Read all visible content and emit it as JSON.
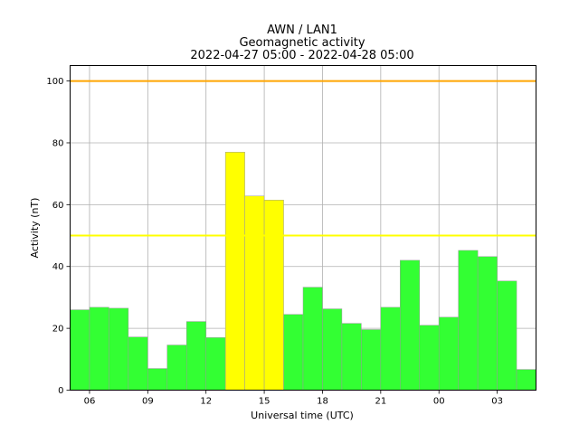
{
  "chart_data": {
    "type": "bar",
    "title": [
      "AWN / LAN1",
      "Geomagnetic activity",
      "2022-04-27 05:00 - 2022-04-28 05:00"
    ],
    "xlabel": "Universal time (UTC)",
    "ylabel": "Activity (nT)",
    "ylim": [
      0,
      105
    ],
    "yticks": [
      0,
      20,
      40,
      60,
      80,
      100
    ],
    "xlim": [
      "2022-04-27 05:00",
      "2022-04-28 05:00"
    ],
    "xticks": [
      {
        "time": "2022-04-27 06:00",
        "label": "06"
      },
      {
        "time": "2022-04-27 09:00",
        "label": "09"
      },
      {
        "time": "2022-04-27 12:00",
        "label": "12"
      },
      {
        "time": "2022-04-27 15:00",
        "label": "15"
      },
      {
        "time": "2022-04-27 18:00",
        "label": "18"
      },
      {
        "time": "2022-04-27 21:00",
        "label": "21"
      },
      {
        "time": "2022-04-28 00:00",
        "label": "00"
      },
      {
        "time": "2022-04-28 03:00",
        "label": "03"
      }
    ],
    "grid": true,
    "categories": [
      "2022-04-27 05:00",
      "2022-04-27 06:00",
      "2022-04-27 07:00",
      "2022-04-27 08:00",
      "2022-04-27 09:00",
      "2022-04-27 10:00",
      "2022-04-27 11:00",
      "2022-04-27 12:00",
      "2022-04-27 13:00",
      "2022-04-27 14:00",
      "2022-04-27 15:00",
      "2022-04-27 16:00",
      "2022-04-27 17:00",
      "2022-04-27 18:00",
      "2022-04-27 19:00",
      "2022-04-27 20:00",
      "2022-04-27 21:00",
      "2022-04-27 22:00",
      "2022-04-27 23:00",
      "2022-04-28 00:00",
      "2022-04-28 01:00",
      "2022-04-28 02:00",
      "2022-04-28 03:00",
      "2022-04-28 04:00"
    ],
    "values": [
      26,
      26.8,
      26.5,
      17.2,
      7,
      14.6,
      22.2,
      17,
      77,
      62.8,
      61.5,
      24.5,
      33.3,
      26.3,
      21.6,
      19.6,
      26.8,
      42,
      21,
      23.6,
      45.2,
      43.2,
      35.3,
      6.7
    ],
    "bar_colors": {
      "normal": "#33ff33",
      "elevated": "#ffff00",
      "elevated_threshold": 50,
      "edge": "#999999"
    },
    "thresholds": [
      {
        "value": 50,
        "color": "#ffff00"
      },
      {
        "value": 100,
        "color": "#ffa500"
      }
    ]
  }
}
